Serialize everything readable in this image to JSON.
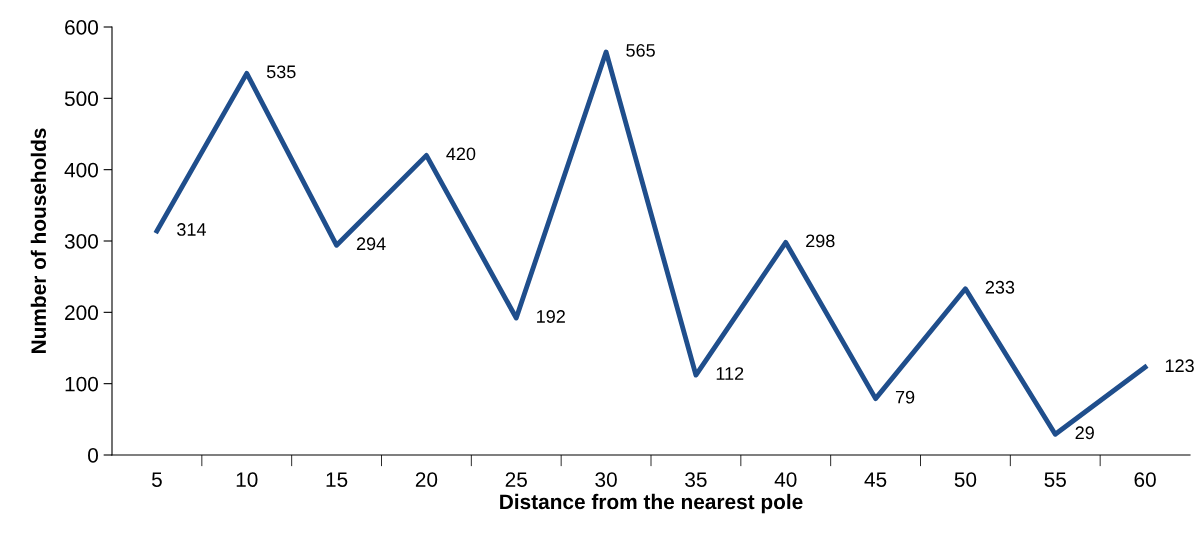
{
  "chart_data": {
    "type": "line",
    "xlabel": "Distance from the nearest pole",
    "ylabel": "Number of households",
    "categories": [
      "5",
      "10",
      "15",
      "20",
      "25",
      "30",
      "35",
      "40",
      "45",
      "50",
      "55",
      "60"
    ],
    "series": [
      {
        "color": "#1f4e8c",
        "values": [
          314,
          535,
          294,
          420,
          192,
          565,
          112,
          298,
          79,
          233,
          29,
          123
        ]
      }
    ],
    "ylim": [
      0,
      600
    ],
    "yticks": [
      0,
      100,
      200,
      300,
      400,
      500,
      600
    ],
    "data_labels": true,
    "grid": false,
    "legend": false,
    "marker": "none",
    "line_style": "solid"
  }
}
